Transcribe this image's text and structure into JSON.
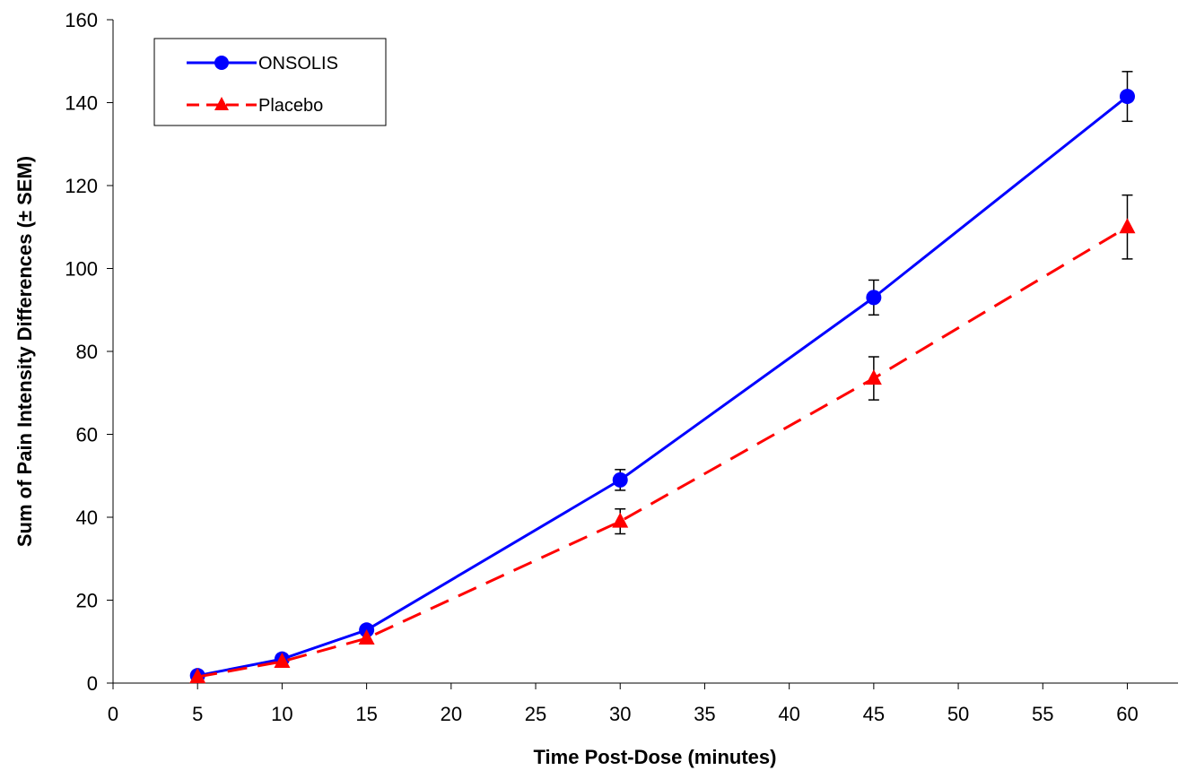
{
  "chart_data": {
    "type": "line",
    "title": "",
    "xlabel": "Time Post-Dose (minutes)",
    "ylabel": "Sum of Pain Intensity Differences (± SEM)",
    "xlim": [
      0,
      63
    ],
    "ylim": [
      0,
      160
    ],
    "x_ticks": [
      0,
      5,
      10,
      15,
      20,
      25,
      30,
      35,
      40,
      45,
      50,
      55,
      60
    ],
    "y_ticks": [
      0,
      20,
      40,
      60,
      80,
      100,
      120,
      140,
      160
    ],
    "grid": false,
    "legend_position": "top-left",
    "series": [
      {
        "name": "ONSOLIS",
        "color": "#0000ff",
        "line_style": "solid",
        "marker": "circle",
        "x": [
          5,
          10,
          15,
          30,
          45,
          60
        ],
        "y": [
          1.8,
          5.8,
          12.8,
          49,
          93,
          141.5
        ],
        "error": [
          0,
          0,
          0,
          2.5,
          4.2,
          6
        ]
      },
      {
        "name": "Placebo",
        "color": "#ff0000",
        "line_style": "dashed",
        "marker": "triangle",
        "x": [
          5,
          10,
          15,
          30,
          45,
          60
        ],
        "y": [
          1.5,
          5.2,
          10.8,
          39,
          73.5,
          110
        ],
        "error": [
          0,
          0,
          0,
          3,
          5.2,
          7.7
        ]
      }
    ]
  }
}
